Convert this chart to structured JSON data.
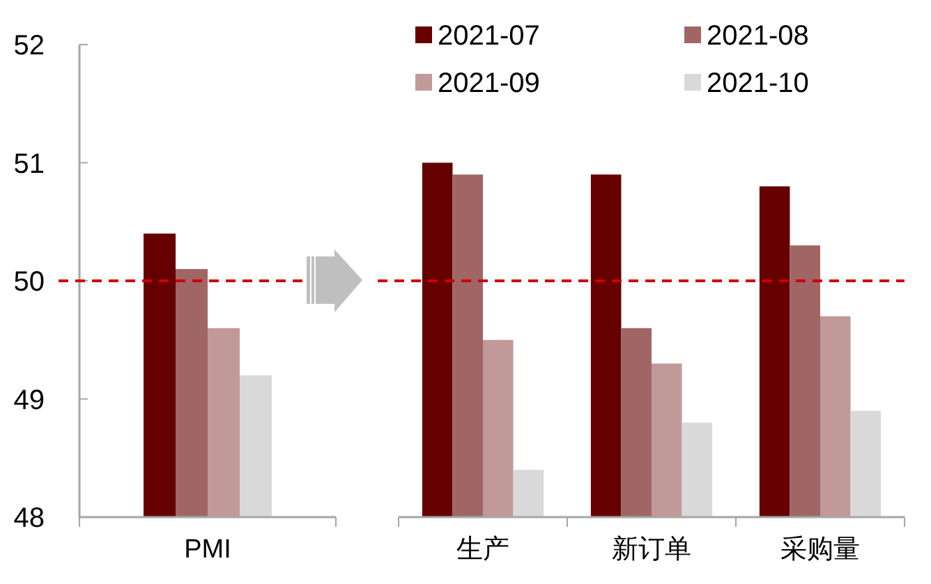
{
  "chart_data": [
    {
      "type": "bar",
      "categories": [
        "PMI"
      ],
      "series": [
        {
          "color": "#660000",
          "values": [
            50.4
          ]
        },
        {
          "color": "#a06666",
          "values": [
            50.1
          ]
        },
        {
          "color": "#c29999",
          "values": [
            49.6
          ]
        },
        {
          "color": "#d9d9d9",
          "values": [
            49.2
          ]
        }
      ],
      "ylim": [
        48,
        52
      ],
      "yticks": [
        48,
        49,
        50,
        51,
        52
      ],
      "grid": false,
      "ref_lines": [
        {
          "axis": "y",
          "value": 50,
          "color": "#cc0000",
          "line_style": "dashed"
        }
      ]
    },
    {
      "type": "bar",
      "categories": [
        "生产",
        "新订单",
        "采购量"
      ],
      "series": [
        {
          "name": "2021-07",
          "color": "#660000",
          "values": [
            51.0,
            50.9,
            50.8
          ]
        },
        {
          "name": "2021-08",
          "color": "#a06666",
          "values": [
            50.9,
            49.6,
            50.3
          ]
        },
        {
          "name": "2021-09",
          "color": "#c29999",
          "values": [
            49.5,
            49.3,
            49.7
          ]
        },
        {
          "name": "2021-10",
          "color": "#d9d9d9",
          "values": [
            48.4,
            48.8,
            48.9
          ]
        }
      ],
      "ylim": [
        48,
        52
      ],
      "tick_labels": "x",
      "grid": false,
      "legend": "top",
      "ref_lines": [
        {
          "axis": "y",
          "value": 50,
          "color": "#cc0000",
          "line_style": "dashed"
        }
      ]
    }
  ]
}
